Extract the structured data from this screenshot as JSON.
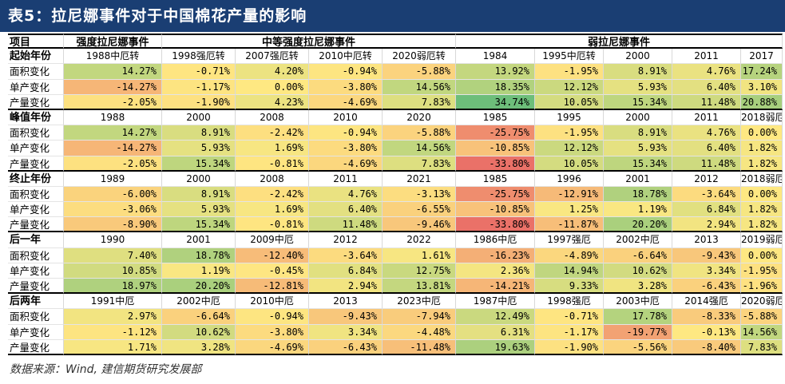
{
  "title": "表5：拉尼娜事件对于中国棉花产量的影响",
  "header": {
    "item": "项目",
    "groups": [
      {
        "label": "强度拉尼娜事件",
        "span": 1
      },
      {
        "label": "中等强度拉尼娜事件",
        "span": 4
      },
      {
        "label": "弱拉尼娜事件",
        "span": 5
      }
    ]
  },
  "sections": [
    {
      "label": "起始年份",
      "years": [
        "1988中厄转",
        "1998强厄转",
        "2007强厄转",
        "2010中厄转",
        "2020弱厄转",
        "1984",
        "1995中厄转",
        "2000",
        "2011",
        "2017"
      ],
      "rows": [
        {
          "label": "面积变化",
          "values": [
            "14.27%",
            "-0.71%",
            "4.20%",
            "-0.94%",
            "-5.88%",
            "13.92%",
            "-1.95%",
            "8.91%",
            "4.76%",
            "17.24%"
          ]
        },
        {
          "label": "单产变化",
          "values": [
            "-14.27%",
            "-1.17%",
            "0.00%",
            "-3.80%",
            "14.56%",
            "18.35%",
            "12.12%",
            "5.93%",
            "6.40%",
            "3.10%"
          ]
        },
        {
          "label": "产量变化",
          "values": [
            "-2.05%",
            "-1.90%",
            "4.23%",
            "-4.69%",
            "7.83%",
            "34.74%",
            "10.05%",
            "15.34%",
            "11.48%",
            "20.88%"
          ]
        }
      ]
    },
    {
      "label": "峰值年份",
      "years": [
        "1988",
        "2000",
        "2008",
        "2010",
        "2020",
        "1985",
        "1995",
        "2000",
        "2011",
        "2018弱厄"
      ],
      "rows": [
        {
          "label": "面积变化",
          "values": [
            "14.27%",
            "8.91%",
            "-2.42%",
            "-0.94%",
            "-5.88%",
            "-25.75%",
            "-1.95%",
            "8.91%",
            "4.76%",
            "0.00%"
          ]
        },
        {
          "label": "单产变化",
          "values": [
            "-14.27%",
            "5.93%",
            "1.69%",
            "-3.80%",
            "14.56%",
            "-10.85%",
            "12.12%",
            "5.93%",
            "6.40%",
            "1.82%"
          ]
        },
        {
          "label": "产量变化",
          "values": [
            "-2.05%",
            "15.34%",
            "-0.81%",
            "-4.69%",
            "7.83%",
            "-33.80%",
            "10.05%",
            "15.34%",
            "11.48%",
            "1.82%"
          ]
        }
      ]
    },
    {
      "label": "终止年份",
      "years": [
        "1989",
        "2000",
        "2008",
        "2011",
        "2021",
        "1985",
        "1996",
        "2001",
        "2012",
        "2018弱厄"
      ],
      "rows": [
        {
          "label": "面积变化",
          "values": [
            "-6.00%",
            "8.91%",
            "-2.42%",
            "4.76%",
            "-3.13%",
            "-25.75%",
            "-12.91%",
            "18.78%",
            "-3.64%",
            "0.00%"
          ]
        },
        {
          "label": "单产变化",
          "values": [
            "-3.06%",
            "5.93%",
            "1.69%",
            "6.40%",
            "-6.55%",
            "-10.85%",
            "1.25%",
            "1.19%",
            "6.84%",
            "1.82%"
          ]
        },
        {
          "label": "产量变化",
          "values": [
            "-8.90%",
            "15.34%",
            "-0.81%",
            "11.48%",
            "-9.46%",
            "-33.80%",
            "-11.87%",
            "20.20%",
            "2.94%",
            "1.82%"
          ]
        }
      ]
    },
    {
      "label": "后一年",
      "years": [
        "1990",
        "2001",
        "2009中厄",
        "2012",
        "2022",
        "1986中厄",
        "1997强厄",
        "2002中厄",
        "2013",
        "2019弱厄"
      ],
      "rows": [
        {
          "label": "面积变化",
          "values": [
            "7.40%",
            "18.78%",
            "-12.40%",
            "-3.64%",
            "1.61%",
            "-16.23%",
            "-4.89%",
            "-6.64%",
            "-9.43%",
            "0.00%"
          ]
        },
        {
          "label": "单产变化",
          "values": [
            "10.85%",
            "1.19%",
            "-0.45%",
            "6.84%",
            "12.75%",
            "2.36%",
            "14.94%",
            "10.62%",
            "3.34%",
            "-1.95%"
          ]
        },
        {
          "label": "产量变化",
          "values": [
            "18.97%",
            "20.20%",
            "-12.81%",
            "2.94%",
            "13.81%",
            "-14.21%",
            "9.33%",
            "3.28%",
            "-6.43%",
            "-1.96%"
          ]
        }
      ]
    },
    {
      "label": "后两年",
      "years": [
        "1991中厄",
        "2002中厄",
        "2010中厄",
        "2013",
        "2023中厄",
        "1987中厄",
        "1998强厄",
        "2003中厄",
        "2014强厄",
        "2020弱厄"
      ],
      "rows": [
        {
          "label": "面积变化",
          "values": [
            "2.97%",
            "-6.64%",
            "-0.94%",
            "-9.43%",
            "-7.94%",
            "12.49%",
            "-0.71%",
            "17.78%",
            "-8.33%",
            "-5.88%"
          ]
        },
        {
          "label": "单产变化",
          "values": [
            "-1.12%",
            "10.62%",
            "-3.80%",
            "3.34%",
            "-4.48%",
            "6.31%",
            "-1.17%",
            "-19.77%",
            "-0.13%",
            "14.56%"
          ]
        },
        {
          "label": "产量变化",
          "values": [
            "1.71%",
            "3.28%",
            "-4.69%",
            "-6.43%",
            "-11.48%",
            "19.63%",
            "-1.90%",
            "-5.56%",
            "-8.40%",
            "7.83%"
          ]
        }
      ]
    }
  ],
  "source": "数据来源：Wind, 建信期货研究发展部"
}
